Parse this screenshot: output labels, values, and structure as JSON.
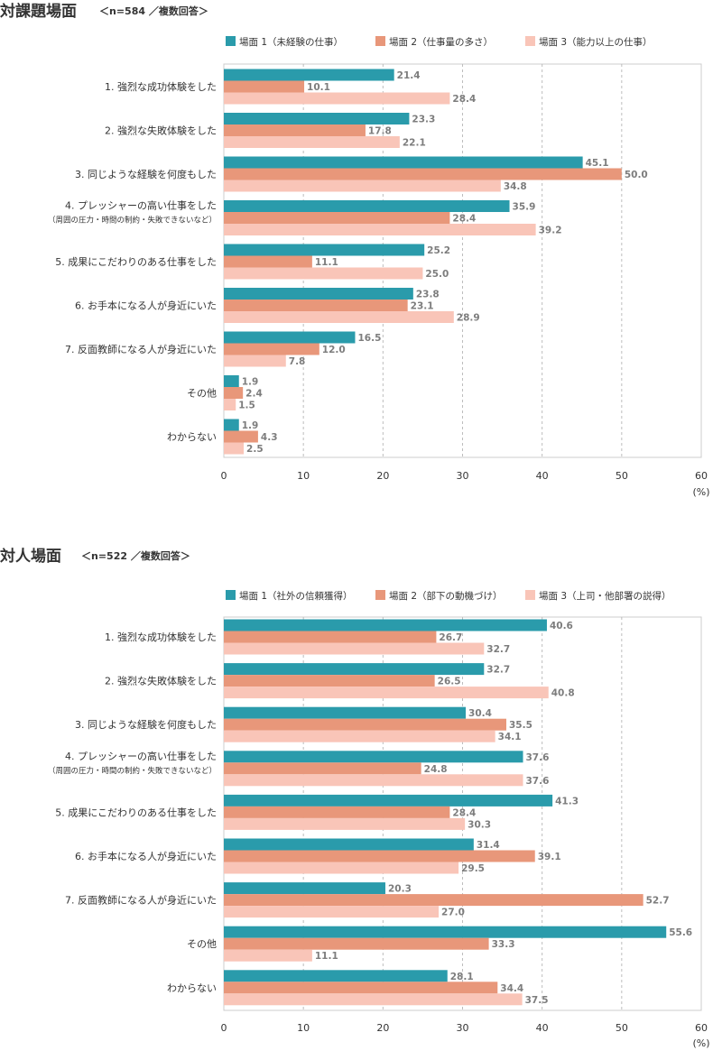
{
  "colors": {
    "series1": "#2a9bab",
    "series2": "#e8977a",
    "series3": "#f9c5b8",
    "grid": "#bdbdbd",
    "frame": "#cccccc",
    "text": "#333333",
    "value_label": "#7d7d7d"
  },
  "chart_data": [
    {
      "type": "bar",
      "orientation": "horizontal",
      "title": "対課題場面",
      "subtitle": "＜n=584 ／複数回答＞",
      "unit": "(%)",
      "xlim": [
        0,
        60
      ],
      "ticks": [
        "0",
        "10",
        "20",
        "30",
        "40",
        "50",
        "60"
      ],
      "grid": true,
      "legend_position": "top",
      "categories": [
        {
          "label": "1. 強烈な成功体験をした",
          "sublabel": ""
        },
        {
          "label": "2. 強烈な失敗体験をした",
          "sublabel": ""
        },
        {
          "label": "3. 同じような経験を何度もした",
          "sublabel": ""
        },
        {
          "label": "4. プレッシャーの高い仕事をした",
          "sublabel": "（周囲の圧力・時間の制約・失敗できないなど）"
        },
        {
          "label": "5. 成果にこだわりのある仕事をした",
          "sublabel": ""
        },
        {
          "label": "6. お手本になる人が身近にいた",
          "sublabel": ""
        },
        {
          "label": "7. 反面教師になる人が身近にいた",
          "sublabel": ""
        },
        {
          "label": "その他",
          "sublabel": ""
        },
        {
          "label": "わからない",
          "sublabel": ""
        }
      ],
      "series": [
        {
          "name": "場面 1（未経験の仕事）",
          "values": [
            21.4,
            23.3,
            45.1,
            35.9,
            25.2,
            23.8,
            16.5,
            1.9,
            1.9
          ]
        },
        {
          "name": "場面 2（仕事量の多さ）",
          "values": [
            10.1,
            17.8,
            50.0,
            28.4,
            11.1,
            23.1,
            12.0,
            2.4,
            4.3
          ]
        },
        {
          "name": "場面 3（能力以上の仕事）",
          "values": [
            28.4,
            22.1,
            34.8,
            39.2,
            25.0,
            28.9,
            7.8,
            1.5,
            2.5
          ]
        }
      ]
    },
    {
      "type": "bar",
      "orientation": "horizontal",
      "title": "対人場面",
      "subtitle": "＜n=522 ／複数回答＞",
      "unit": "(%)",
      "xlim": [
        0,
        60
      ],
      "ticks": [
        "0",
        "10",
        "20",
        "30",
        "40",
        "50",
        "60"
      ],
      "grid": true,
      "legend_position": "top",
      "categories": [
        {
          "label": "1. 強烈な成功体験をした",
          "sublabel": ""
        },
        {
          "label": "2. 強烈な失敗体験をした",
          "sublabel": ""
        },
        {
          "label": "3. 同じような経験を何度もした",
          "sublabel": ""
        },
        {
          "label": "4. プレッシャーの高い仕事をした",
          "sublabel": "（周囲の圧力・時間の制約・失敗できないなど）"
        },
        {
          "label": "5. 成果にこだわりのある仕事をした",
          "sublabel": ""
        },
        {
          "label": "6. お手本になる人が身近にいた",
          "sublabel": ""
        },
        {
          "label": "7. 反面教師になる人が身近にいた",
          "sublabel": ""
        },
        {
          "label": "その他",
          "sublabel": ""
        },
        {
          "label": "わからない",
          "sublabel": ""
        }
      ],
      "series": [
        {
          "name": "場面 1（社外の信頼獲得）",
          "values": [
            40.6,
            32.7,
            30.4,
            37.6,
            41.3,
            31.4,
            20.3,
            55.6,
            28.1
          ]
        },
        {
          "name": "場面 2（部下の動機づけ）",
          "values": [
            26.7,
            26.5,
            35.5,
            24.8,
            28.4,
            39.1,
            52.7,
            33.3,
            34.4
          ]
        },
        {
          "name": "場面 3（上司・他部署の説得）",
          "values": [
            32.7,
            40.8,
            34.1,
            37.6,
            30.3,
            29.5,
            27.0,
            11.1,
            37.5
          ]
        }
      ]
    }
  ]
}
